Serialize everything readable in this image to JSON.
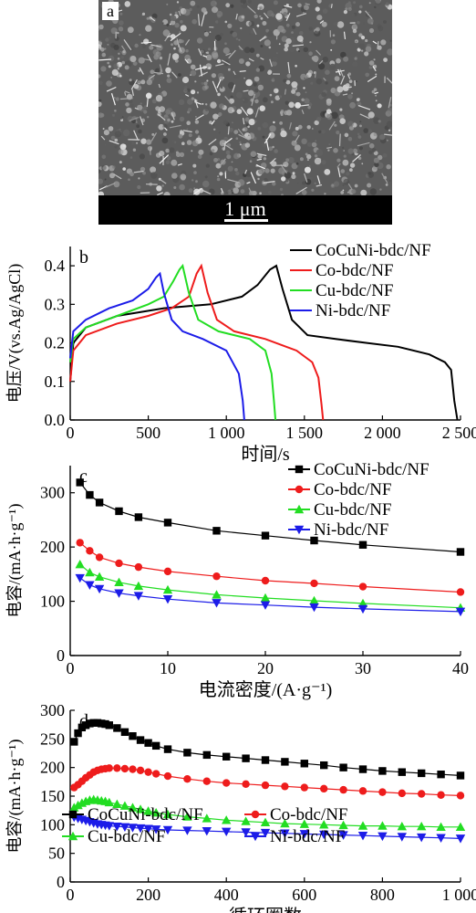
{
  "sem": {
    "panel_label": "a",
    "scale_label": "1 μm"
  },
  "chart_data": [
    {
      "panel": "b",
      "type": "line",
      "xlabel": "时间/s",
      "ylabel": "电压/V(vs.Ag/AgCl)",
      "xlim": [
        0,
        2500
      ],
      "ylim": [
        0,
        0.45
      ],
      "xticks": [
        0,
        500,
        1000,
        1500,
        2000,
        2500
      ],
      "xtick_labels": [
        "0",
        "500",
        "1 000",
        "1 500",
        "2 000",
        "2 500"
      ],
      "yticks": [
        0.0,
        0.1,
        0.2,
        0.3,
        0.4
      ],
      "ytick_labels": [
        "0.0",
        "0.1",
        "0.2",
        "0.3",
        "0.4"
      ],
      "legend_position": "top-right",
      "series": [
        {
          "name": "CoCuNi-bdc/NF",
          "color": "#000000",
          "x": [
            0,
            20,
            100,
            300,
            600,
            900,
            1100,
            1200,
            1280,
            1320,
            1360,
            1420,
            1520,
            1700,
            1900,
            2100,
            2300,
            2400,
            2440,
            2460,
            2480
          ],
          "y": [
            0.1,
            0.2,
            0.24,
            0.27,
            0.29,
            0.3,
            0.32,
            0.35,
            0.39,
            0.4,
            0.34,
            0.26,
            0.22,
            0.21,
            0.2,
            0.19,
            0.17,
            0.15,
            0.13,
            0.05,
            0.0
          ]
        },
        {
          "name": "Co-bdc/NF",
          "color": "#ee1c1c",
          "x": [
            0,
            20,
            100,
            300,
            500,
            650,
            760,
            810,
            840,
            880,
            940,
            1050,
            1250,
            1450,
            1550,
            1590,
            1610,
            1620
          ],
          "y": [
            0.1,
            0.18,
            0.22,
            0.25,
            0.27,
            0.29,
            0.32,
            0.38,
            0.4,
            0.33,
            0.26,
            0.23,
            0.21,
            0.18,
            0.15,
            0.11,
            0.04,
            0.0
          ]
        },
        {
          "name": "Cu-bdc/NF",
          "color": "#22dd22",
          "x": [
            0,
            20,
            100,
            300,
            500,
            600,
            660,
            700,
            720,
            760,
            820,
            950,
            1150,
            1250,
            1290,
            1305,
            1315
          ],
          "y": [
            0.15,
            0.21,
            0.24,
            0.27,
            0.3,
            0.32,
            0.36,
            0.39,
            0.4,
            0.33,
            0.26,
            0.23,
            0.21,
            0.18,
            0.12,
            0.05,
            0.0
          ]
        },
        {
          "name": "Ni-bdc/NF",
          "color": "#1c1ce8",
          "x": [
            0,
            20,
            100,
            250,
            400,
            500,
            550,
            575,
            600,
            650,
            720,
            850,
            1000,
            1080,
            1105,
            1115
          ],
          "y": [
            0.16,
            0.23,
            0.26,
            0.29,
            0.31,
            0.34,
            0.37,
            0.38,
            0.33,
            0.26,
            0.23,
            0.21,
            0.18,
            0.12,
            0.05,
            0.0
          ]
        }
      ]
    },
    {
      "panel": "c",
      "type": "line",
      "xlabel": "电流密度/(A·g⁻¹)",
      "ylabel": "电容/(mA·h·g⁻¹)",
      "xlim": [
        0,
        40
      ],
      "ylim": [
        0,
        350
      ],
      "xticks": [
        0,
        10,
        20,
        30,
        40
      ],
      "xtick_labels": [
        "0",
        "10",
        "20",
        "30",
        "40"
      ],
      "yticks": [
        0,
        100,
        200,
        300
      ],
      "ytick_labels": [
        "0",
        "100",
        "200",
        "300"
      ],
      "legend_position": "top-right",
      "x": [
        1,
        2,
        3,
        5,
        7,
        10,
        15,
        20,
        25,
        30,
        40
      ],
      "series": [
        {
          "name": "CoCuNi-bdc/NF",
          "color": "#000000",
          "marker": "square",
          "values": [
            319,
            296,
            282,
            266,
            255,
            245,
            230,
            221,
            212,
            204,
            191
          ]
        },
        {
          "name": "Co-bdc/NF",
          "color": "#ee1c1c",
          "marker": "circle",
          "values": [
            208,
            193,
            181,
            170,
            163,
            155,
            146,
            138,
            133,
            127,
            117
          ]
        },
        {
          "name": "Cu-bdc/NF",
          "color": "#22dd22",
          "marker": "triangle-up",
          "values": [
            168,
            153,
            145,
            135,
            128,
            121,
            112,
            106,
            101,
            96,
            88
          ]
        },
        {
          "name": "Ni-bdc/NF",
          "color": "#1c1ce8",
          "marker": "triangle-down",
          "values": [
            143,
            130,
            123,
            115,
            110,
            104,
            97,
            93,
            89,
            86,
            81
          ]
        }
      ]
    },
    {
      "panel": "d",
      "type": "line",
      "xlabel": "循环圈数",
      "ylabel": "电容/(mA·h·g⁻¹)",
      "xlim": [
        0,
        1000
      ],
      "ylim": [
        0,
        300
      ],
      "xticks": [
        0,
        200,
        400,
        600,
        800,
        1000
      ],
      "xtick_labels": [
        "0",
        "200",
        "400",
        "600",
        "800",
        "1 000"
      ],
      "yticks": [
        0,
        50,
        100,
        150,
        200,
        250,
        300
      ],
      "ytick_labels": [
        "0",
        "50",
        "100",
        "150",
        "200",
        "250",
        "300"
      ],
      "legend_position": "bottom-left",
      "x": [
        10,
        20,
        30,
        40,
        50,
        60,
        70,
        80,
        90,
        100,
        120,
        140,
        160,
        180,
        200,
        220,
        250,
        300,
        350,
        400,
        450,
        500,
        550,
        600,
        650,
        700,
        750,
        800,
        850,
        900,
        950,
        1000
      ],
      "series": [
        {
          "name": "CoCuNi-bdc/NF",
          "color": "#000000",
          "marker": "square",
          "values": [
            245,
            260,
            270,
            274,
            277,
            278,
            278,
            277,
            276,
            274,
            269,
            262,
            255,
            248,
            243,
            238,
            232,
            226,
            222,
            219,
            216,
            213,
            210,
            207,
            204,
            200,
            197,
            194,
            192,
            190,
            188,
            186
          ]
        },
        {
          "name": "Co-bdc/NF",
          "color": "#ee1c1c",
          "marker": "circle",
          "values": [
            165,
            170,
            176,
            182,
            187,
            192,
            195,
            197,
            198,
            199,
            199,
            198,
            197,
            195,
            192,
            189,
            185,
            180,
            176,
            173,
            171,
            169,
            167,
            165,
            163,
            161,
            159,
            157,
            155,
            154,
            152,
            151
          ]
        },
        {
          "name": "Cu-bdc/NF",
          "color": "#22dd22",
          "marker": "triangle-up",
          "values": [
            130,
            134,
            138,
            141,
            143,
            144,
            143,
            142,
            141,
            139,
            136,
            133,
            130,
            127,
            124,
            121,
            118,
            114,
            111,
            108,
            106,
            104,
            102,
            101,
            100,
            99,
            98,
            98,
            97,
            97,
            96,
            96
          ]
        },
        {
          "name": "Ni-bdc/NF",
          "color": "#1c1ce8",
          "marker": "triangle-down",
          "values": [
            113,
            111,
            109,
            107,
            105,
            103,
            101,
            100,
            99,
            98,
            97,
            96,
            95,
            94,
            93,
            92,
            91,
            90,
            89,
            88,
            87,
            86,
            85,
            84,
            83,
            82,
            81,
            80,
            79,
            78,
            77,
            76
          ]
        }
      ]
    }
  ]
}
